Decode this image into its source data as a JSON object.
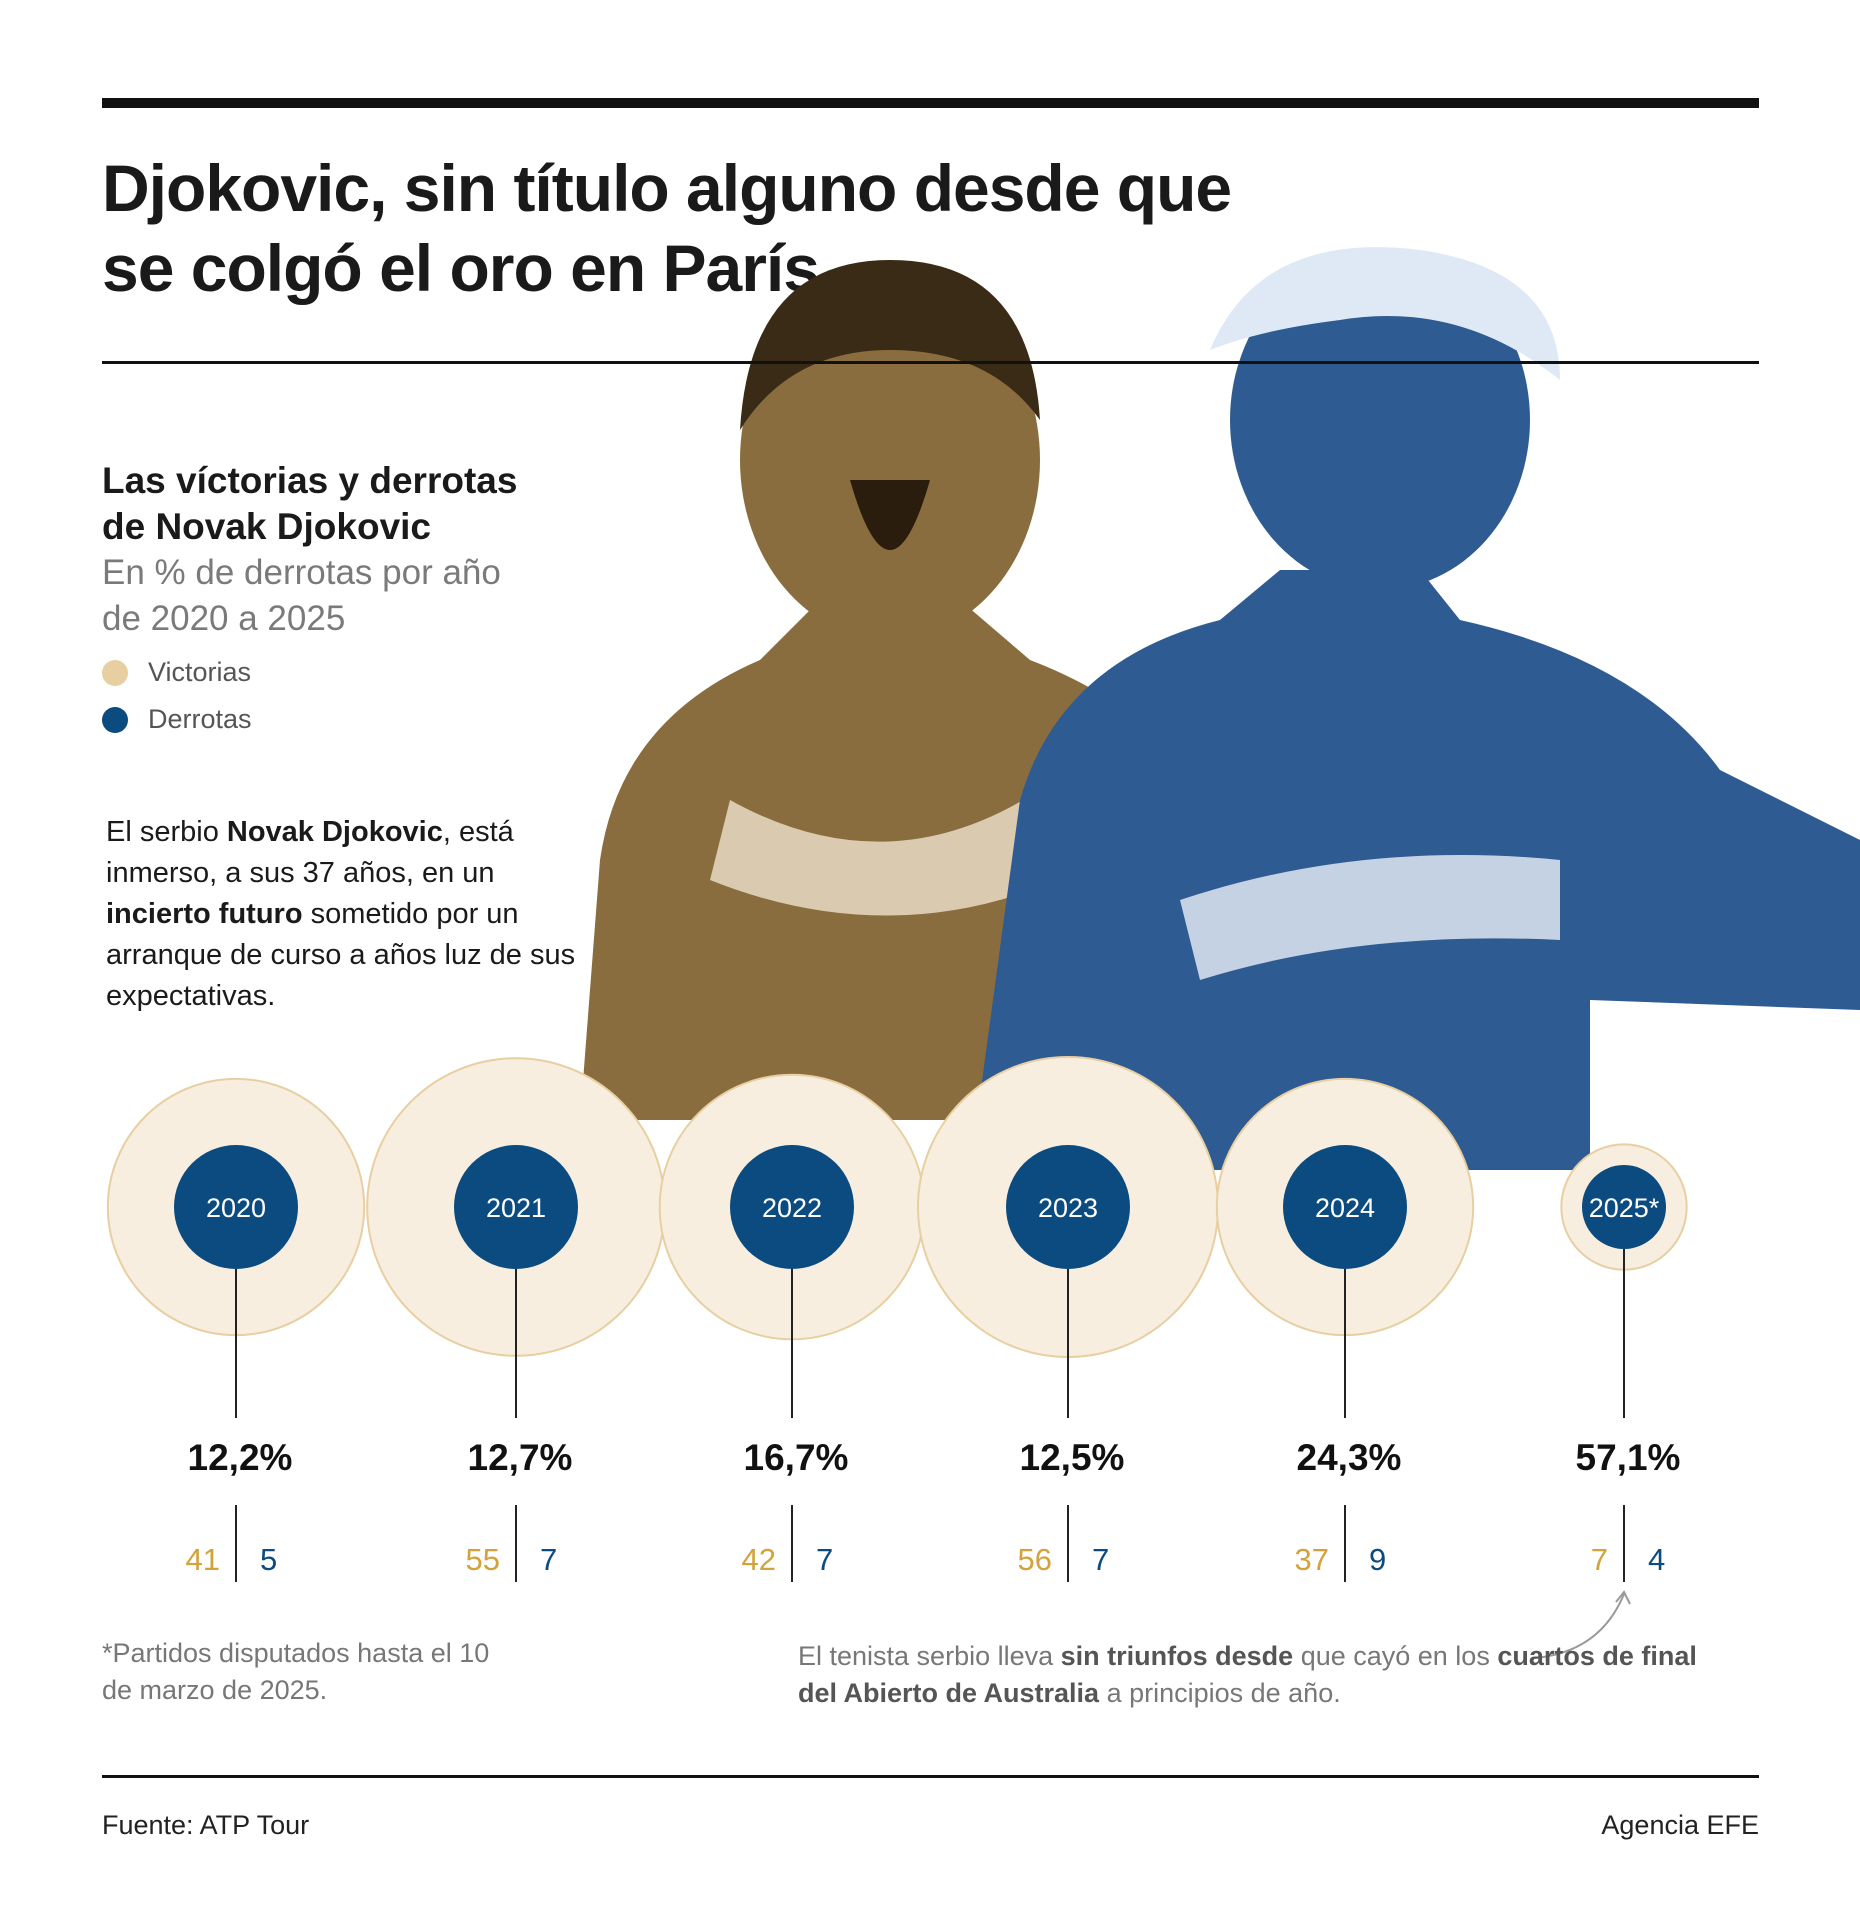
{
  "headline": [
    "Djokovic, sin título alguno desde que",
    "se colgó el oro en París"
  ],
  "colors": {
    "victorias": "#e8cfa1",
    "victorias_fill": "#f7eee0",
    "victorias_text": "#d4a23a",
    "derrotas": "#0b4b80",
    "photo_left": "#8a6d3e",
    "photo_right": "#2f5b93"
  },
  "chart_data": {
    "type": "bubble",
    "title": [
      "Las víctorias y derrotas",
      "de Novak Djokovic"
    ],
    "subtitle": [
      "En % de derrotas por año",
      "de 2020 a 2025"
    ],
    "legend": [
      {
        "label": "Victorias",
        "color": "#e8cfa1"
      },
      {
        "label": "Derrotas",
        "color": "#0b4b80"
      }
    ],
    "categories": [
      "2020",
      "2021",
      "2022",
      "2023",
      "2024",
      "2025*"
    ],
    "wins": [
      41,
      55,
      42,
      56,
      37,
      7
    ],
    "losses": [
      5,
      7,
      7,
      7,
      9,
      4
    ],
    "loss_pct": [
      12.2,
      12.7,
      16.7,
      12.5,
      24.3,
      57.1
    ],
    "loss_pct_labels": [
      "12,2%",
      "12,7%",
      "16,7%",
      "12,5%",
      "24,3%",
      "57,1%"
    ]
  },
  "intro": [
    {
      "t": "El serbio ",
      "b": false
    },
    {
      "t": "Novak Djokovic",
      "b": true
    },
    {
      "t": ", está inmerso, a sus 37 años, en un ",
      "b": false
    },
    {
      "t": "incierto futuro",
      "b": true
    },
    {
      "t": " sometido por un arranque de curso a años luz de sus expectativas.",
      "b": false
    }
  ],
  "footnote": "*Partidos disputados hasta el 10 de marzo de 2025.",
  "note": [
    {
      "t": "El tenista serbio lleva ",
      "b": false
    },
    {
      "t": "sin triunfos desde",
      "b": true
    },
    {
      "t": " que cayó en los ",
      "b": false
    },
    {
      "t": "cuartos de final del Abierto de Australia",
      "b": true
    },
    {
      "t": " a principios de año.",
      "b": false
    }
  ],
  "source": "Fuente: ATP Tour",
  "agency": "Agencia EFE"
}
